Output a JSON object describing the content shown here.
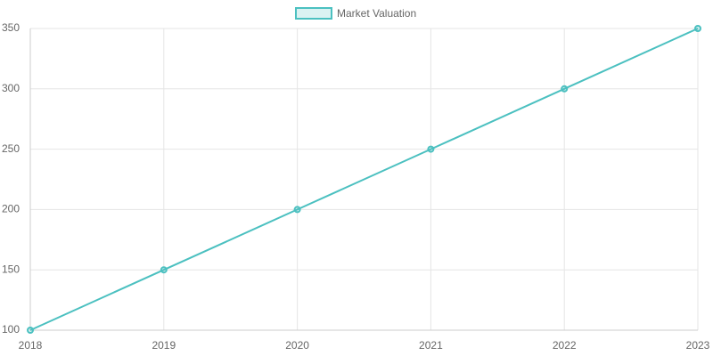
{
  "chart_data": {
    "type": "line",
    "categories": [
      "2018",
      "2019",
      "2020",
      "2021",
      "2022",
      "2023"
    ],
    "series": [
      {
        "name": "Market Valuation",
        "color": "#4bc0c0",
        "values": [
          100,
          150,
          200,
          250,
          300,
          350
        ]
      }
    ],
    "ylim": [
      100,
      350
    ],
    "yticks": [
      100,
      150,
      200,
      250,
      300,
      350
    ],
    "grid": true,
    "legend": "top"
  }
}
